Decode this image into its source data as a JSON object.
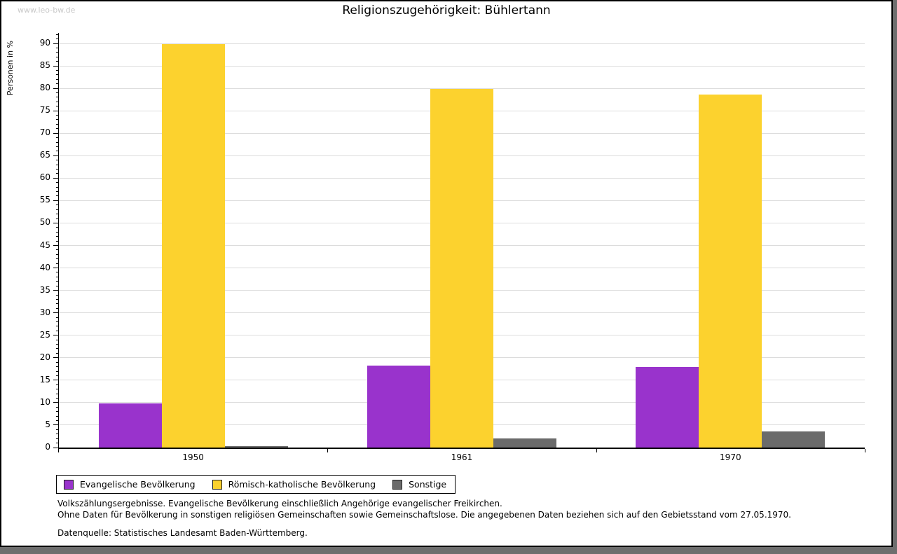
{
  "watermark": "www.leo-bw.de",
  "chart_data": {
    "type": "bar",
    "title": "Religionszugehörigkeit: Bühlertann",
    "ylabel": "Personen in %",
    "xlabel": "",
    "categories": [
      "1950",
      "1961",
      "1970"
    ],
    "series": [
      {
        "name": "Evangelische Bevölkerung",
        "color": "#9933cc",
        "values": [
          9.9,
          18.2,
          17.9
        ]
      },
      {
        "name": "Römisch-katholische Bevölkerung",
        "color": "#fcd22e",
        "values": [
          89.8,
          79.8,
          78.6
        ]
      },
      {
        "name": "Sonstige",
        "color": "#6b6b6b",
        "values": [
          0.3,
          2.0,
          3.6
        ]
      }
    ],
    "ylim": [
      0,
      90
    ],
    "ytick_step": 5,
    "minor_tick_step": 1,
    "grid": "horizontal",
    "legend_position": "bottom-left",
    "unit": "%"
  },
  "footnotes": {
    "line1": "Volkszählungsergebnisse. Evangelische Bevölkerung einschließlich Angehörige evangelischer Freikirchen.",
    "line2": "Ohne Daten für Bevölkerung in sonstigen religiösen Gemeinschaften sowie Gemeinschaftslose. Die angegebenen Daten beziehen sich auf den Gebietsstand vom 27.05.1970.",
    "source": "Datenquelle: Statistisches Landesamt Baden-Württemberg."
  }
}
